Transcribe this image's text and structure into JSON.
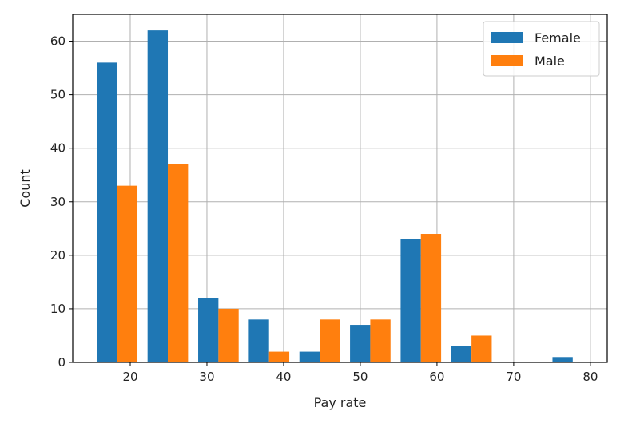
{
  "chart_data": {
    "type": "bar",
    "xlabel": "Pay rate",
    "ylabel": "Count",
    "xlim": [
      12.5,
      82.2
    ],
    "ylim": [
      0,
      65
    ],
    "x_ticks": [
      20,
      30,
      40,
      50,
      60,
      70,
      80
    ],
    "y_ticks": [
      0,
      10,
      20,
      30,
      40,
      50,
      60
    ],
    "grid": true,
    "legend_position": "top-right",
    "bin_edges": [
      15.0,
      21.6,
      28.2,
      34.8,
      41.4,
      48.0,
      54.6,
      61.2,
      67.8,
      74.4,
      81.0
    ],
    "series": [
      {
        "name": "Female",
        "color": "#1f77b4",
        "values": [
          56,
          62,
          12,
          8,
          2,
          7,
          23,
          3,
          0,
          1
        ]
      },
      {
        "name": "Male",
        "color": "#ff7f0e",
        "values": [
          33,
          37,
          10,
          2,
          8,
          8,
          24,
          5,
          0,
          0
        ]
      }
    ]
  }
}
